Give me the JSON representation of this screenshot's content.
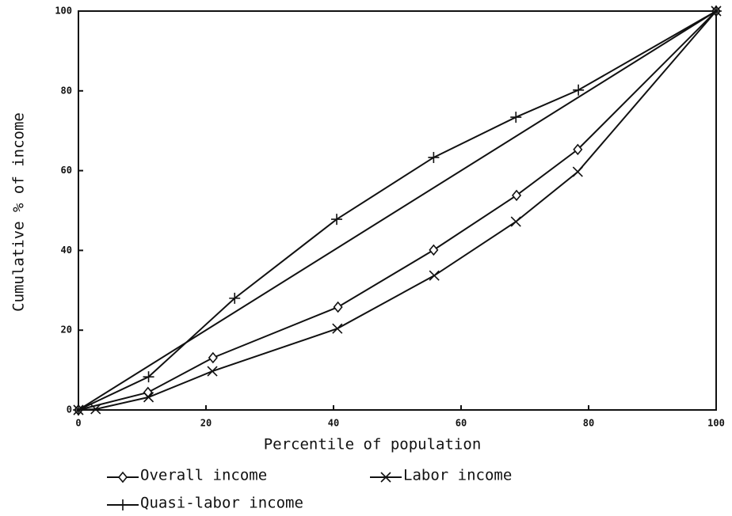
{
  "chart_data": {
    "type": "line",
    "xlabel": "Percentile of population",
    "ylabel": "Cumulative % of income",
    "xlim": [
      0,
      100
    ],
    "ylim": [
      0,
      100
    ],
    "xticks": [
      0,
      20,
      40,
      60,
      80,
      100
    ],
    "yticks": [
      0,
      20,
      40,
      60,
      80,
      100
    ],
    "series": [
      {
        "name": "Overall income",
        "marker": "diamond",
        "color": "#111111",
        "x": [
          0,
          10.9,
          21.1,
          40.7,
          55.7,
          68.7,
          78.3,
          100
        ],
        "values": [
          0,
          4.4,
          13.1,
          25.8,
          40.1,
          53.8,
          65.3,
          100
        ]
      },
      {
        "name": "Labor income",
        "marker": "x",
        "color": "#111111",
        "x": [
          0,
          2.7,
          11,
          21,
          40.6,
          55.8,
          68.6,
          78.3,
          100
        ],
        "values": [
          0,
          0.2,
          3.2,
          9.7,
          20.4,
          33.7,
          47.2,
          59.7,
          100
        ]
      },
      {
        "name": "Quasi-labor income",
        "marker": "plus",
        "color": "#111111",
        "x": [
          0,
          11,
          24.5,
          40.5,
          55.7,
          68.6,
          78.4,
          100
        ],
        "values": [
          0,
          8.3,
          28,
          47.8,
          63.3,
          73.4,
          80.2,
          100
        ]
      }
    ]
  }
}
